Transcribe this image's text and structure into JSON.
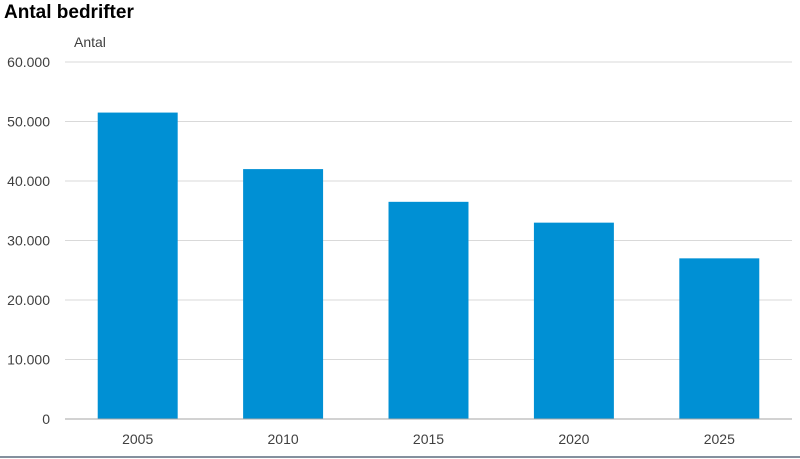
{
  "chart_data": {
    "type": "bar",
    "title": "Antal bedrifter",
    "ylabel": "Antal",
    "xlabel": "",
    "categories": [
      "2005",
      "2010",
      "2015",
      "2020",
      "2025"
    ],
    "values": [
      51500,
      42000,
      36500,
      33000,
      27000
    ],
    "ylim": [
      0,
      60000
    ],
    "yticks": [
      0,
      10000,
      20000,
      30000,
      40000,
      50000,
      60000
    ],
    "ytick_labels": [
      "0",
      "10.000",
      "20.000",
      "30.000",
      "40.000",
      "50.000",
      "60.000"
    ],
    "grid": true,
    "legend": "none",
    "bar_color": "#0090D4",
    "grid_color": "#D9D9D9",
    "axis_color": "#A6A6A6",
    "text_color": "#404040"
  }
}
